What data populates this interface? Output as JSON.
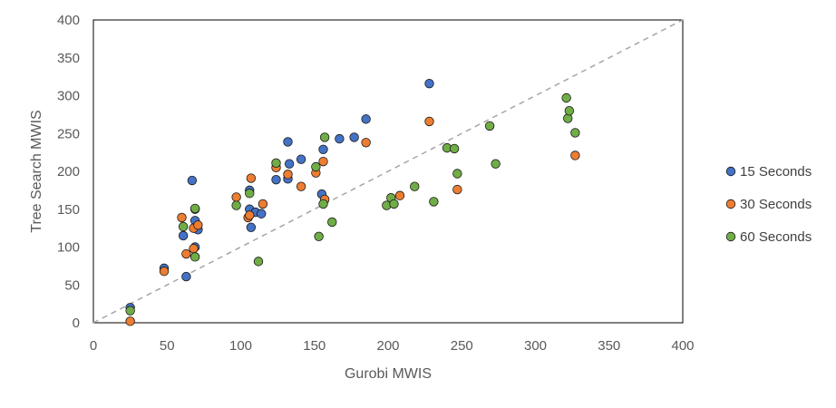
{
  "chart_data": {
    "type": "scatter",
    "title": "",
    "xlabel": "Gurobi MWIS",
    "ylabel": "Tree Search MWIS",
    "xlim": [
      0,
      400
    ],
    "ylim": [
      0,
      400
    ],
    "xticks": [
      0,
      50,
      100,
      150,
      200,
      250,
      300,
      350,
      400
    ],
    "yticks": [
      0,
      50,
      100,
      150,
      200,
      250,
      300,
      350,
      400
    ],
    "grid": false,
    "legend": "right",
    "reference_line": {
      "style": "dashed",
      "from": [
        0,
        0
      ],
      "to": [
        400,
        400
      ],
      "color": "#a6a6a6"
    },
    "series": [
      {
        "name": "15 Seconds",
        "color": "#4472c4",
        "points": [
          [
            25,
            20
          ],
          [
            48,
            72
          ],
          [
            61,
            115
          ],
          [
            63,
            61
          ],
          [
            67,
            188
          ],
          [
            69,
            135
          ],
          [
            69,
            100
          ],
          [
            71,
            123
          ],
          [
            106,
            150
          ],
          [
            106,
            175
          ],
          [
            107,
            126
          ],
          [
            110,
            146
          ],
          [
            114,
            144
          ],
          [
            124,
            189
          ],
          [
            132,
            190
          ],
          [
            133,
            210
          ],
          [
            132,
            239
          ],
          [
            141,
            216
          ],
          [
            155,
            170
          ],
          [
            156,
            229
          ],
          [
            167,
            243
          ],
          [
            177,
            245
          ],
          [
            185,
            269
          ],
          [
            228,
            316
          ]
        ]
      },
      {
        "name": "30 Seconds",
        "color": "#ed7d31",
        "points": [
          [
            25,
            2
          ],
          [
            48,
            68
          ],
          [
            60,
            139
          ],
          [
            63,
            91
          ],
          [
            68,
            98
          ],
          [
            68,
            125
          ],
          [
            69,
            150
          ],
          [
            71,
            129
          ],
          [
            97,
            166
          ],
          [
            105,
            139
          ],
          [
            106,
            142
          ],
          [
            107,
            191
          ],
          [
            115,
            157
          ],
          [
            124,
            205
          ],
          [
            132,
            196
          ],
          [
            141,
            180
          ],
          [
            151,
            198
          ],
          [
            156,
            213
          ],
          [
            157,
            163
          ],
          [
            185,
            238
          ],
          [
            208,
            168
          ],
          [
            228,
            266
          ],
          [
            247,
            176
          ],
          [
            327,
            221
          ]
        ]
      },
      {
        "name": "60 Seconds",
        "color": "#70ad47",
        "points": [
          [
            25,
            16
          ],
          [
            61,
            127
          ],
          [
            69,
            87
          ],
          [
            69,
            151
          ],
          [
            97,
            155
          ],
          [
            106,
            171
          ],
          [
            112,
            81
          ],
          [
            124,
            211
          ],
          [
            151,
            206
          ],
          [
            153,
            114
          ],
          [
            156,
            157
          ],
          [
            157,
            245
          ],
          [
            162,
            133
          ],
          [
            199,
            155
          ],
          [
            202,
            165
          ],
          [
            204,
            157
          ],
          [
            218,
            180
          ],
          [
            231,
            160
          ],
          [
            240,
            231
          ],
          [
            245,
            230
          ],
          [
            247,
            197
          ],
          [
            269,
            260
          ],
          [
            273,
            210
          ],
          [
            321,
            297
          ],
          [
            322,
            270
          ],
          [
            323,
            280
          ],
          [
            327,
            251
          ]
        ]
      }
    ]
  }
}
